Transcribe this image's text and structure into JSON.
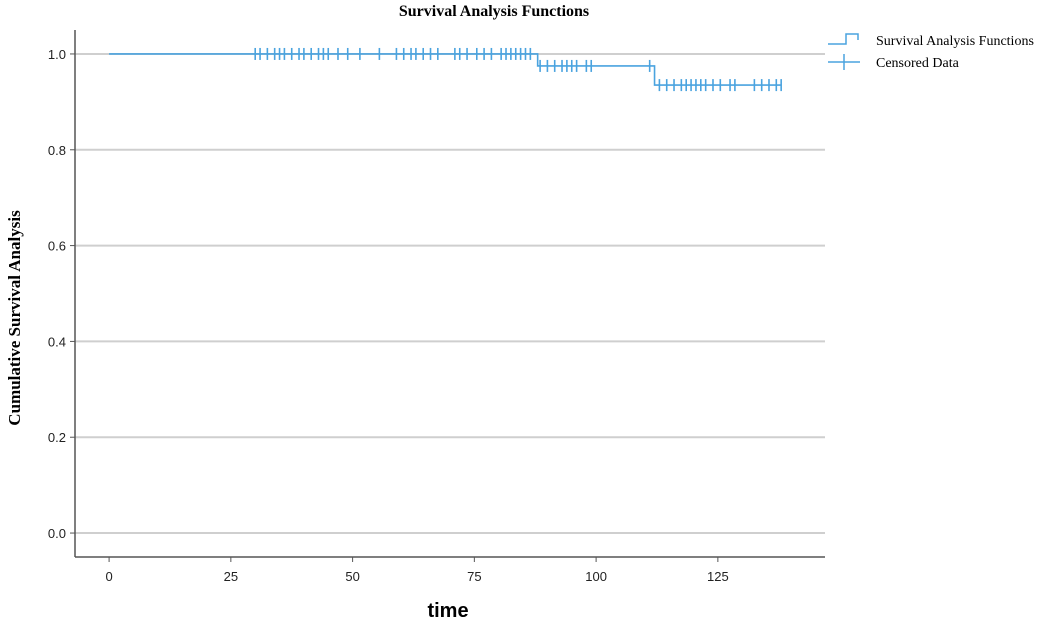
{
  "chart_data": {
    "type": "line",
    "title": "Survival Analysis Functions",
    "xlabel": "time",
    "ylabel": "Cumulative Survival Analysis",
    "xlim": [
      -7,
      147
    ],
    "ylim": [
      -0.05,
      1.05
    ],
    "xticks": [
      0,
      25,
      50,
      75,
      100,
      125
    ],
    "yticks": [
      0.0,
      0.2,
      0.4,
      0.6,
      0.8,
      1.0
    ],
    "ytick_labels": [
      "0.0",
      "0.2",
      "0.4",
      "0.6",
      "0.8",
      "1.0"
    ],
    "grid": "horizontal",
    "legend_position": "top-right",
    "color": "#4aa3df",
    "series": [
      {
        "name": "Survival Analysis Functions",
        "kind": "step",
        "x": [
          0,
          88,
          112,
          138
        ],
        "y": [
          1.0,
          0.975,
          0.935,
          0.935
        ]
      },
      {
        "name": "Censored Data",
        "kind": "censor",
        "points": [
          [
            30,
            1.0
          ],
          [
            31,
            1.0
          ],
          [
            32.5,
            1.0
          ],
          [
            34,
            1.0
          ],
          [
            35,
            1.0
          ],
          [
            36,
            1.0
          ],
          [
            37.5,
            1.0
          ],
          [
            39,
            1.0
          ],
          [
            40,
            1.0
          ],
          [
            41.5,
            1.0
          ],
          [
            43,
            1.0
          ],
          [
            44,
            1.0
          ],
          [
            45,
            1.0
          ],
          [
            47,
            1.0
          ],
          [
            49,
            1.0
          ],
          [
            51.5,
            1.0
          ],
          [
            55.5,
            1.0
          ],
          [
            59,
            1.0
          ],
          [
            60.5,
            1.0
          ],
          [
            62,
            1.0
          ],
          [
            63,
            1.0
          ],
          [
            64.5,
            1.0
          ],
          [
            66,
            1.0
          ],
          [
            67.5,
            1.0
          ],
          [
            71,
            1.0
          ],
          [
            72,
            1.0
          ],
          [
            73.5,
            1.0
          ],
          [
            75.5,
            1.0
          ],
          [
            77,
            1.0
          ],
          [
            78.5,
            1.0
          ],
          [
            80.5,
            1.0
          ],
          [
            81.5,
            1.0
          ],
          [
            82.5,
            1.0
          ],
          [
            83.5,
            1.0
          ],
          [
            84.5,
            1.0
          ],
          [
            85.5,
            1.0
          ],
          [
            86.5,
            1.0
          ],
          [
            88.5,
            0.975
          ],
          [
            90,
            0.975
          ],
          [
            91.5,
            0.975
          ],
          [
            93,
            0.975
          ],
          [
            94,
            0.975
          ],
          [
            95,
            0.975
          ],
          [
            96,
            0.975
          ],
          [
            98,
            0.975
          ],
          [
            99,
            0.975
          ],
          [
            111,
            0.975
          ],
          [
            113,
            0.935
          ],
          [
            114.5,
            0.935
          ],
          [
            116,
            0.935
          ],
          [
            117.5,
            0.935
          ],
          [
            118.5,
            0.935
          ],
          [
            119.5,
            0.935
          ],
          [
            120.5,
            0.935
          ],
          [
            121.5,
            0.935
          ],
          [
            122.5,
            0.935
          ],
          [
            124,
            0.935
          ],
          [
            125.5,
            0.935
          ],
          [
            127.5,
            0.935
          ],
          [
            128.5,
            0.935
          ],
          [
            132.5,
            0.935
          ],
          [
            134,
            0.935
          ],
          [
            135.5,
            0.935
          ],
          [
            137,
            0.935
          ],
          [
            138,
            0.935
          ]
        ]
      }
    ]
  }
}
